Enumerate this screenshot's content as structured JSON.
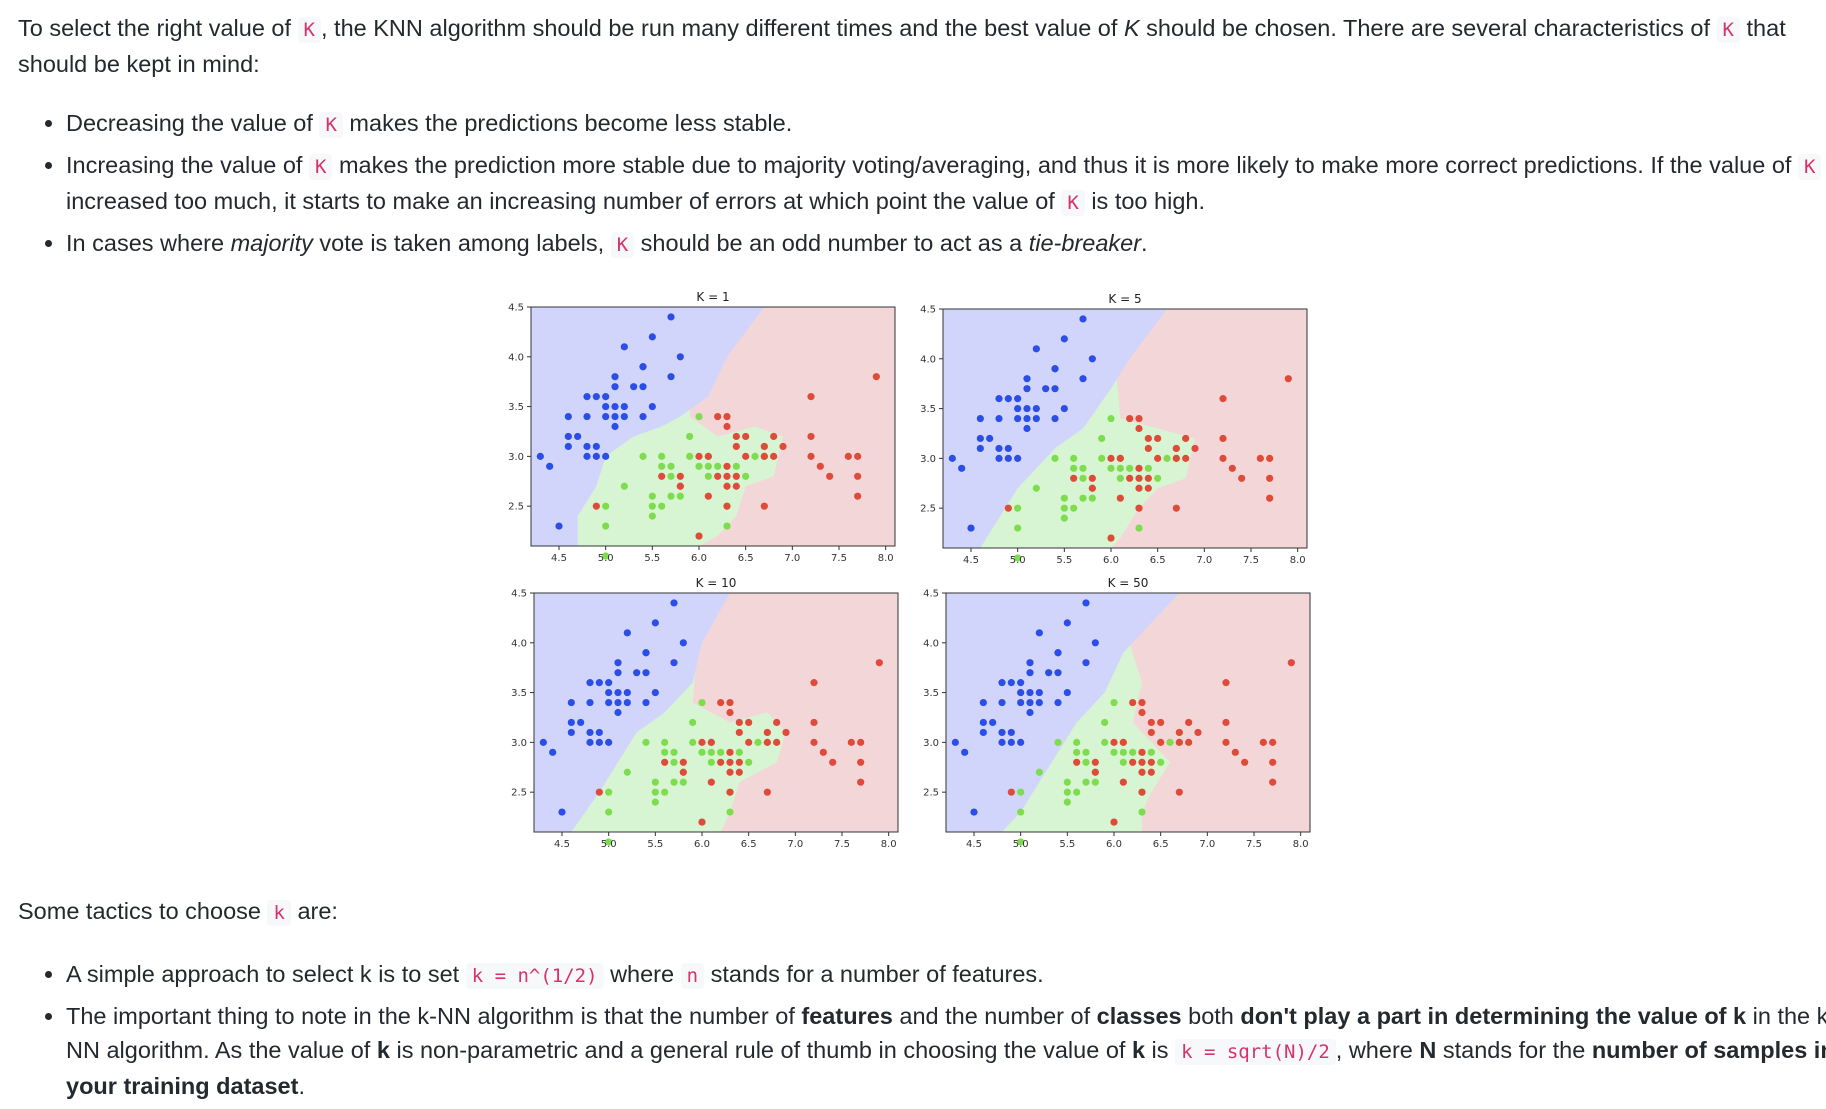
{
  "intro": {
    "t1": "To select the right value of ",
    "c1": "K",
    "t2": ", the KNN algorithm should be run many different times and the best value of ",
    "t3": "K",
    "t4": " should be chosen. There are several characteristics of ",
    "c2": "K",
    "t5": " that should be kept in mind:"
  },
  "bullets1": [
    {
      "a": "Decreasing the value of ",
      "code": "K",
      "b": " makes the predictions become less stable."
    },
    {
      "a": "Increasing the value of ",
      "code": "K",
      "b": " makes the prediction more stable due to majority voting/averaging, and thus it is more likely to make more correct predictions. If the value of ",
      "code2": "K",
      "c": " is increased too much, it starts to make an increasing number of errors at which point the value of ",
      "code3": "K",
      "d": " is too high."
    },
    {
      "a": "In cases where ",
      "em1": "majority",
      "b": " vote is taken among labels, ",
      "code": "K",
      "c": " should be an odd number to act as a ",
      "em2": "tie-breaker",
      "d": "."
    }
  ],
  "figure": {
    "panels": [
      {
        "title": "K = 1"
      },
      {
        "title": "K = 5"
      },
      {
        "title": "K = 10"
      },
      {
        "title": "K = 50"
      }
    ],
    "x_ticks": [
      "4.5",
      "5.0",
      "5.5",
      "6.0",
      "6.5",
      "7.0",
      "7.5",
      "8.0"
    ],
    "y_ticks": [
      "2.5",
      "3.0",
      "3.5",
      "4.0",
      "4.5"
    ],
    "colors": {
      "class_a": "#2b4ee6",
      "class_b": "#7ddd4f",
      "class_c": "#df4b3a",
      "region_a": "#d2d5fb",
      "region_b": "#d8f5d3",
      "region_c": "#f3d6d7"
    }
  },
  "chart_data": [
    {
      "type": "scatter",
      "title": "K = 1",
      "xlim": [
        4.2,
        8.1
      ],
      "ylim": [
        2.1,
        4.5
      ],
      "x_ticks": [
        "4.5",
        "5.0",
        "5.5",
        "6.0",
        "6.5",
        "7.0",
        "7.5",
        "8.0"
      ],
      "y_ticks": [
        "2.5",
        "3.0",
        "3.5",
        "4.0",
        "4.5"
      ]
    },
    {
      "type": "scatter",
      "title": "K = 5",
      "xlim": [
        4.2,
        8.1
      ],
      "ylim": [
        2.1,
        4.5
      ],
      "x_ticks": [
        "4.5",
        "5.0",
        "5.5",
        "6.0",
        "6.5",
        "7.0",
        "7.5",
        "8.0"
      ],
      "y_ticks": [
        "2.5",
        "3.0",
        "3.5",
        "4.0",
        "4.5"
      ]
    },
    {
      "type": "scatter",
      "title": "K = 10",
      "xlim": [
        4.2,
        8.1
      ],
      "ylim": [
        2.1,
        4.5
      ],
      "x_ticks": [
        "4.5",
        "5.0",
        "5.5",
        "6.0",
        "6.5",
        "7.0",
        "7.5",
        "8.0"
      ],
      "y_ticks": [
        "2.5",
        "3.0",
        "3.5",
        "4.0",
        "4.5"
      ]
    },
    {
      "type": "scatter",
      "title": "K = 50",
      "xlim": [
        4.2,
        8.1
      ],
      "ylim": [
        2.1,
        4.5
      ],
      "x_ticks": [
        "4.5",
        "5.0",
        "5.5",
        "6.0",
        "6.5",
        "7.0",
        "7.5",
        "8.0"
      ],
      "y_ticks": [
        "2.5",
        "3.0",
        "3.5",
        "4.0",
        "4.5"
      ]
    }
  ],
  "points": {
    "a": [
      [
        4.4,
        2.9
      ],
      [
        4.3,
        3.0
      ],
      [
        4.6,
        3.1
      ],
      [
        4.6,
        3.2
      ],
      [
        4.7,
        3.2
      ],
      [
        4.8,
        3.0
      ],
      [
        4.8,
        3.1
      ],
      [
        4.9,
        3.0
      ],
      [
        4.9,
        3.1
      ],
      [
        5.0,
        3.0
      ],
      [
        4.6,
        3.4
      ],
      [
        4.8,
        3.4
      ],
      [
        5.0,
        3.4
      ],
      [
        5.0,
        3.5
      ],
      [
        4.9,
        3.6
      ],
      [
        4.8,
        3.6
      ],
      [
        5.0,
        3.6
      ],
      [
        5.1,
        3.5
      ],
      [
        5.1,
        3.4
      ],
      [
        5.2,
        3.5
      ],
      [
        5.1,
        3.7
      ],
      [
        5.2,
        3.4
      ],
      [
        5.3,
        3.7
      ],
      [
        5.4,
        3.4
      ],
      [
        5.4,
        3.7
      ],
      [
        5.4,
        3.9
      ],
      [
        5.1,
        3.8
      ],
      [
        5.2,
        4.1
      ],
      [
        5.4,
        3.9
      ],
      [
        5.5,
        4.2
      ],
      [
        5.5,
        3.5
      ],
      [
        5.7,
        3.8
      ],
      [
        5.7,
        4.4
      ],
      [
        5.8,
        4.0
      ],
      [
        5.1,
        3.3
      ],
      [
        4.5,
        2.3
      ]
    ],
    "b": [
      [
        5.0,
        2.3
      ],
      [
        5.0,
        2.0
      ],
      [
        5.2,
        2.7
      ],
      [
        5.5,
        2.4
      ],
      [
        5.5,
        2.5
      ],
      [
        5.6,
        2.5
      ],
      [
        5.5,
        2.6
      ],
      [
        5.6,
        2.9
      ],
      [
        5.6,
        3.0
      ],
      [
        5.7,
        2.6
      ],
      [
        5.7,
        2.8
      ],
      [
        5.7,
        2.9
      ],
      [
        5.8,
        2.7
      ],
      [
        5.8,
        2.6
      ],
      [
        5.9,
        3.0
      ],
      [
        5.9,
        3.2
      ],
      [
        6.0,
        2.2
      ],
      [
        6.0,
        2.9
      ],
      [
        6.0,
        3.4
      ],
      [
        6.1,
        2.8
      ],
      [
        6.1,
        2.9
      ],
      [
        6.1,
        3.0
      ],
      [
        6.2,
        2.9
      ],
      [
        6.3,
        2.3
      ],
      [
        6.3,
        2.5
      ],
      [
        6.4,
        2.9
      ],
      [
        6.5,
        2.8
      ],
      [
        6.6,
        3.0
      ],
      [
        6.7,
        3.0
      ],
      [
        6.7,
        3.1
      ],
      [
        5.4,
        3.0
      ],
      [
        5.0,
        2.5
      ]
    ],
    "c": [
      [
        4.9,
        2.5
      ],
      [
        5.6,
        2.8
      ],
      [
        5.8,
        2.7
      ],
      [
        5.8,
        2.8
      ],
      [
        6.0,
        2.2
      ],
      [
        6.0,
        3.0
      ],
      [
        6.1,
        2.6
      ],
      [
        6.1,
        3.0
      ],
      [
        6.2,
        2.8
      ],
      [
        6.2,
        3.4
      ],
      [
        6.3,
        2.5
      ],
      [
        6.3,
        2.7
      ],
      [
        6.3,
        2.8
      ],
      [
        6.3,
        2.9
      ],
      [
        6.3,
        3.3
      ],
      [
        6.3,
        3.4
      ],
      [
        6.4,
        2.7
      ],
      [
        6.4,
        2.8
      ],
      [
        6.4,
        3.1
      ],
      [
        6.4,
        3.2
      ],
      [
        6.5,
        3.0
      ],
      [
        6.5,
        3.2
      ],
      [
        6.7,
        2.5
      ],
      [
        6.7,
        3.0
      ],
      [
        6.7,
        3.1
      ],
      [
        6.8,
        3.0
      ],
      [
        6.8,
        3.2
      ],
      [
        6.9,
        3.1
      ],
      [
        7.2,
        3.0
      ],
      [
        7.2,
        3.2
      ],
      [
        7.2,
        3.6
      ],
      [
        7.3,
        2.9
      ],
      [
        7.4,
        2.8
      ],
      [
        7.6,
        3.0
      ],
      [
        7.7,
        2.6
      ],
      [
        7.7,
        2.8
      ],
      [
        7.7,
        3.0
      ],
      [
        7.9,
        3.8
      ]
    ]
  },
  "tactics_intro": {
    "a": "Some tactics to choose ",
    "code": "k",
    "b": " are:"
  },
  "bullets2": [
    {
      "a": "A simple approach to select k is to set ",
      "code": "k = n^(1/2)",
      "b": " where ",
      "code2": "n",
      "c": " stands for a number of features."
    },
    {
      "a": "The important thing to note in the k-NN algorithm is that the number of ",
      "bold1": "features",
      "b": " and the number of ",
      "bold2": "classes",
      "c": " both ",
      "bold3": "don't play a part in determining the value of k",
      "d": " in the k-NN algorithm. As the value of ",
      "bold4": "k",
      "e": " is non-parametric and a general rule of thumb in choosing the value of ",
      "bold5": "k",
      "f": " is ",
      "code": "k = sqrt(N)/2",
      "g": ", where ",
      "bold6": "N",
      "h": " stands for the ",
      "bold7": "number of samples in your training dataset",
      "i": "."
    }
  ]
}
